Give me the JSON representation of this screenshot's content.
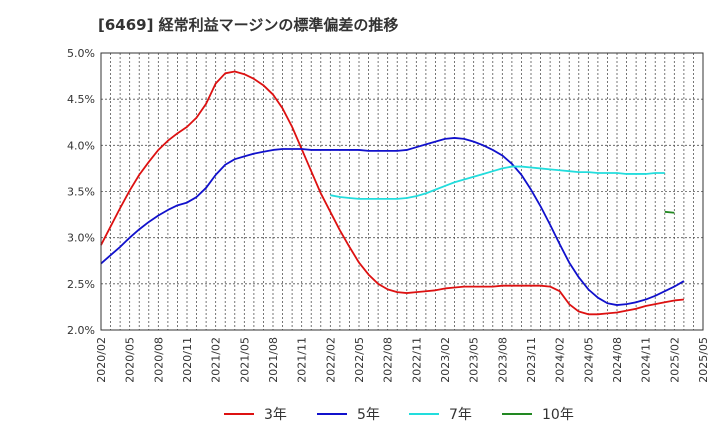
{
  "chart_data": {
    "type": "line",
    "title": "[6469]  経常利益マージンの標準偏差の推移",
    "ylim": [
      2.0,
      5.0
    ],
    "y_ticks": [
      "2.0%",
      "2.5%",
      "3.0%",
      "3.5%",
      "4.0%",
      "4.5%",
      "5.0%"
    ],
    "x_tick_labels": [
      "2020/02",
      "2020/05",
      "2020/08",
      "2020/11",
      "2021/02",
      "2021/05",
      "2021/08",
      "2021/11",
      "2022/02",
      "2022/05",
      "2022/08",
      "2022/11",
      "2023/02",
      "2023/05",
      "2023/08",
      "2023/11",
      "2024/02",
      "2024/05",
      "2024/08",
      "2024/11",
      "2025/02",
      "2025/05"
    ],
    "x_start": "2020/02",
    "grid": true,
    "legend_position": "bottom",
    "series": [
      {
        "name": "3年",
        "color": "#dd1111",
        "start": "2020/02",
        "values": [
          2.92,
          3.12,
          3.32,
          3.51,
          3.68,
          3.82,
          3.95,
          4.05,
          4.13,
          4.2,
          4.3,
          4.45,
          4.67,
          4.78,
          4.8,
          4.77,
          4.72,
          4.65,
          4.55,
          4.4,
          4.2,
          3.96,
          3.72,
          3.48,
          3.28,
          3.08,
          2.9,
          2.73,
          2.6,
          2.5,
          2.44,
          2.41,
          2.4,
          2.41,
          2.42,
          2.43,
          2.45,
          2.46,
          2.47,
          2.47,
          2.47,
          2.47,
          2.48,
          2.48,
          2.48,
          2.48,
          2.48,
          2.47,
          2.42,
          2.28,
          2.2,
          2.17,
          2.17,
          2.18,
          2.19,
          2.21,
          2.23,
          2.26,
          2.28,
          2.3,
          2.32,
          2.33
        ]
      },
      {
        "name": "5年",
        "color": "#1111cc",
        "start": "2020/02",
        "values": [
          2.72,
          2.81,
          2.9,
          3.0,
          3.09,
          3.17,
          3.24,
          3.3,
          3.35,
          3.38,
          3.44,
          3.54,
          3.68,
          3.79,
          3.85,
          3.88,
          3.91,
          3.93,
          3.95,
          3.96,
          3.96,
          3.96,
          3.95,
          3.95,
          3.95,
          3.95,
          3.95,
          3.95,
          3.94,
          3.94,
          3.94,
          3.94,
          3.95,
          3.98,
          4.01,
          4.04,
          4.07,
          4.08,
          4.07,
          4.04,
          4.0,
          3.95,
          3.89,
          3.8,
          3.68,
          3.52,
          3.34,
          3.14,
          2.93,
          2.73,
          2.57,
          2.44,
          2.35,
          2.29,
          2.27,
          2.28,
          2.3,
          2.33,
          2.37,
          2.42,
          2.47,
          2.53
        ]
      },
      {
        "name": "7年",
        "color": "#22dddd",
        "start": "2022/02",
        "values": [
          3.46,
          3.44,
          3.43,
          3.42,
          3.42,
          3.42,
          3.42,
          3.42,
          3.43,
          3.45,
          3.48,
          3.52,
          3.56,
          3.6,
          3.63,
          3.66,
          3.69,
          3.72,
          3.75,
          3.77,
          3.77,
          3.76,
          3.75,
          3.74,
          3.73,
          3.72,
          3.71,
          3.71,
          3.7,
          3.7,
          3.7,
          3.69,
          3.69,
          3.69,
          3.7,
          3.7
        ]
      },
      {
        "name": "10年",
        "color": "#228822",
        "start": "2025/01",
        "values": [
          3.28,
          3.27
        ]
      }
    ]
  }
}
